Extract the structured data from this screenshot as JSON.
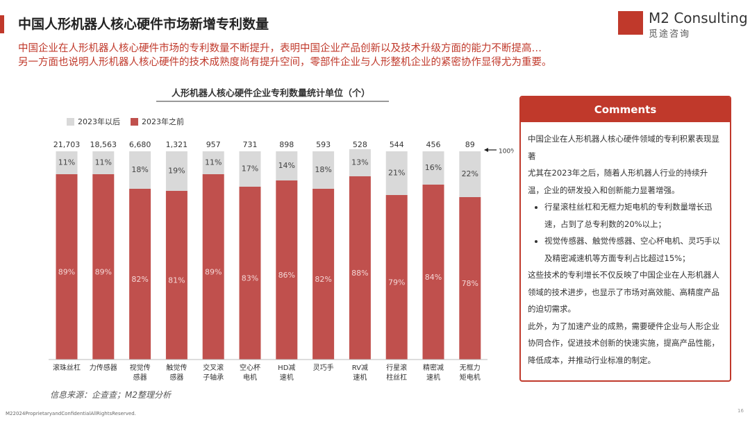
{
  "header": {
    "title": "中国人形机器人核心硬件市场新增专利数量",
    "subtitle": [
      "中国企业在人形机器人核心硬件市场的专利数量不断提升，表明中国企业产品创新以及技术升级方面的能力不断提高…",
      "另一方面也说明人形机器人核心硬件的技术成熟度尚有提升空间，零部件企业与人形整机企业的紧密协作显得尤为重要。"
    ]
  },
  "logo": {
    "name": "M2 Consulting",
    "sub": "觅途咨询"
  },
  "chart_data": {
    "type": "stacked_bar_100",
    "title": "人形机器人核心硬件企业专利数量统计单位（个）",
    "categories": [
      "滚珠丝杠",
      "力传感器",
      "视觉传感器",
      "触觉传感器",
      "交叉滚子轴承",
      "空心杯电机",
      "HD减速机",
      "灵巧手",
      "RV减速机",
      "行星滚柱丝杠",
      "精密减速机",
      "无框力矩电机"
    ],
    "totals": [
      21703,
      18563,
      6680,
      1321,
      957,
      731,
      898,
      593,
      528,
      544,
      456,
      89
    ],
    "total_labels": [
      "21,703",
      "18,563",
      "6,680",
      "1,321",
      "957",
      "731",
      "898",
      "593",
      "528",
      "544",
      "456",
      "89"
    ],
    "series": [
      {
        "name": "2023年以后",
        "color": "#d9d9d9",
        "values": [
          11,
          11,
          18,
          19,
          11,
          17,
          14,
          18,
          13,
          21,
          16,
          22
        ],
        "value_labels": [
          "11%",
          "11%",
          "18%",
          "19%",
          "11%",
          "17%",
          "14%",
          "18%",
          "13%",
          "21%",
          "16%",
          "22%"
        ]
      },
      {
        "name": "2023年之前",
        "color": "#c0504d",
        "values": [
          89,
          89,
          82,
          81,
          89,
          83,
          86,
          82,
          88,
          79,
          84,
          78
        ],
        "value_labels": [
          "89%",
          "89%",
          "82%",
          "81%",
          "89%",
          "83%",
          "86%",
          "82%",
          "88%",
          "79%",
          "84%",
          "78%"
        ]
      }
    ],
    "ylim": [
      0,
      100
    ],
    "annotation": "100%"
  },
  "comments": {
    "title": "Comments",
    "intro": [
      "中国企业在人形机器人核心硬件领域的专利积累表现显著",
      "尤其在2023年之后，随着人形机器人行业的持续升温，企业的研发投入和创新能力显著增强。"
    ],
    "bullets": [
      "行星滚柱丝杠和无框力矩电机的专利数量增长迅速，占到了总专利数的20%以上；",
      "视觉传感器、触觉传感器、空心杯电机、灵巧手以及精密减速机等方面专利占比超过15%；"
    ],
    "outro": [
      "这些技术的专利增长不仅反映了中国企业在人形机器人领域的技术进步，也显示了市场对高效能、高精度产品的迫切需求。",
      "此外，为了加速产业的成熟，需要硬件企业与人形企业协同合作，促进技术创新的快速实施，提高产品性能，降低成本，并推动行业标准的制定。"
    ]
  },
  "source": "信息来源：企查查；M2整理分析",
  "footer": "M22024ProprietaryandConfidentialAllRightsReserved.",
  "page_number": "16"
}
